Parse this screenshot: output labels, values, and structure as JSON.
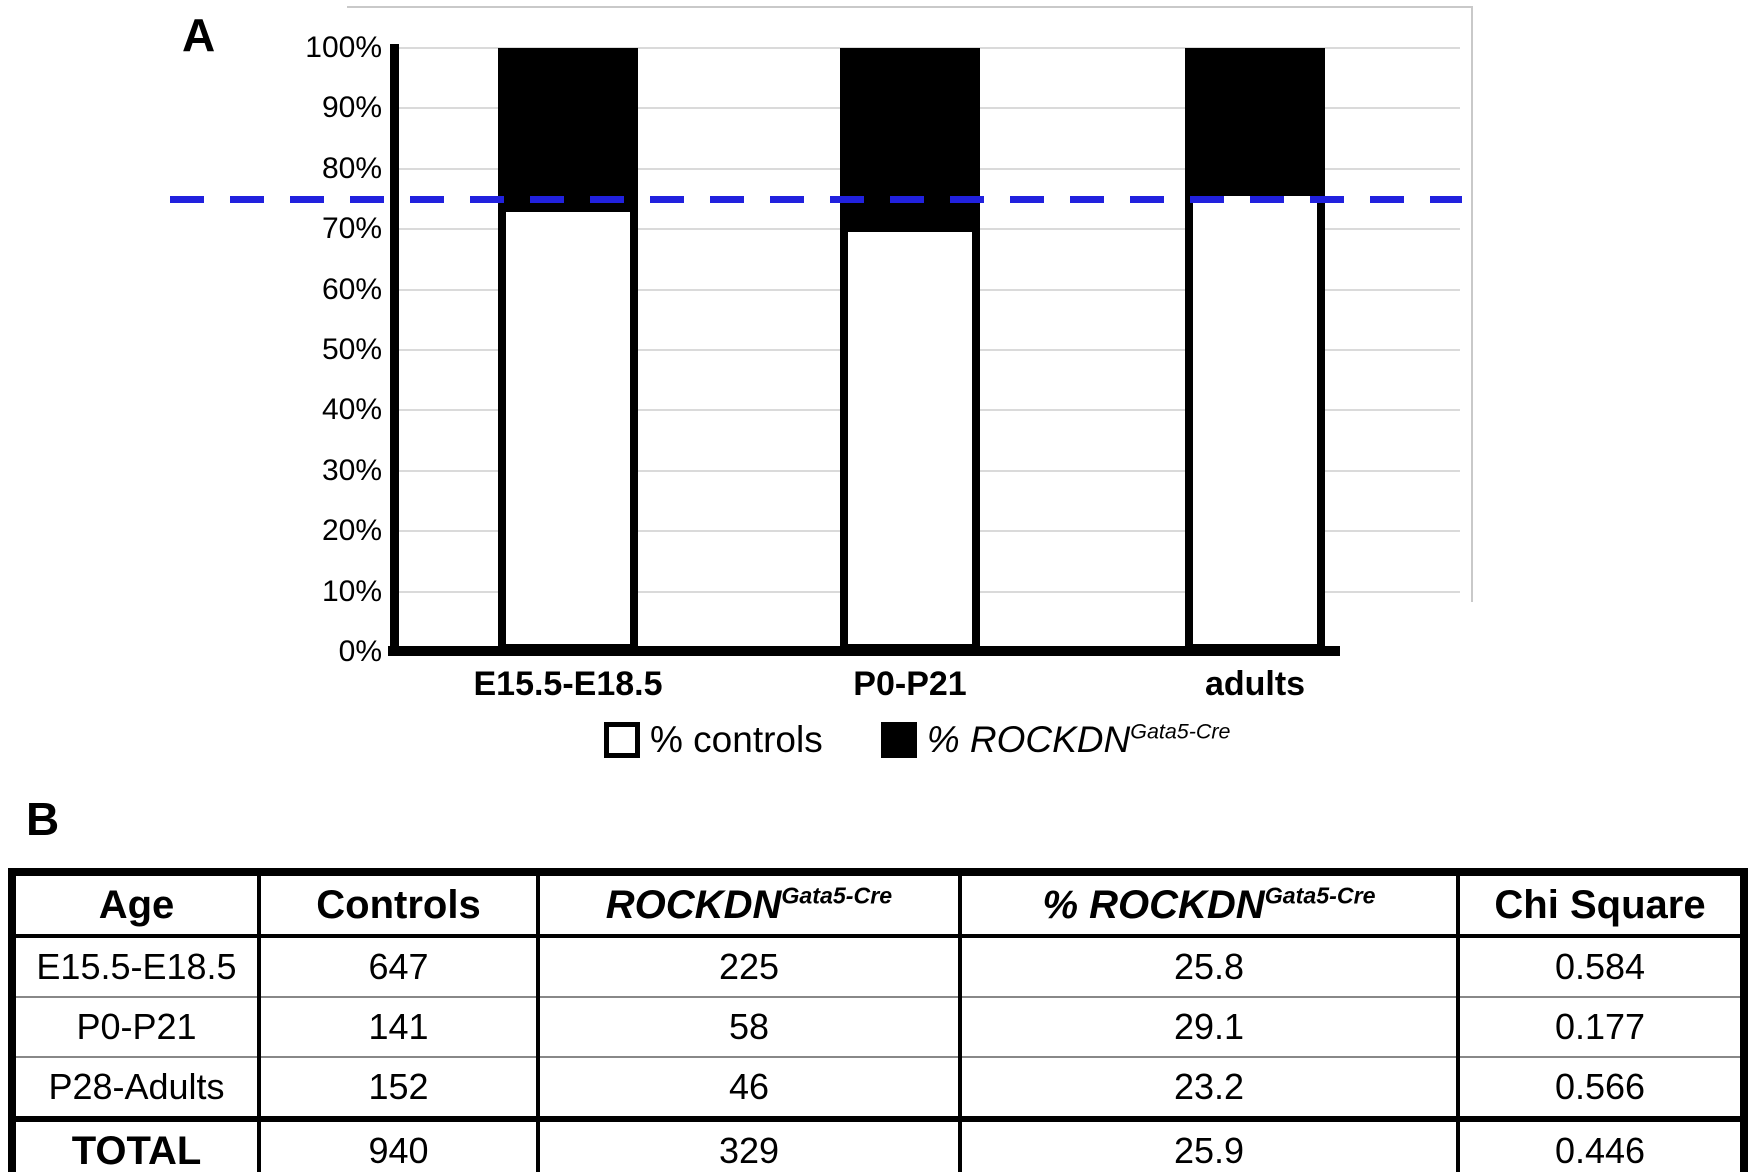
{
  "panel_a": {
    "label": "A",
    "legend": [
      {
        "swatch": "white",
        "label": "% controls",
        "sup": ""
      },
      {
        "swatch": "black",
        "label": "% ROCKDN",
        "sup": "Gata5-Cre"
      }
    ]
  },
  "chart_data": {
    "type": "bar",
    "subtype": "stacked-100",
    "categories": [
      "E15.5-E18.5",
      "P0-P21",
      "adults"
    ],
    "series": [
      {
        "name": "% controls",
        "color": "#ffffff",
        "values": [
          74.2,
          70.9,
          76.8
        ]
      },
      {
        "name": "% ROCKDN Gata5-Cre",
        "color": "#000000",
        "values": [
          25.8,
          29.1,
          23.2
        ]
      }
    ],
    "title": "",
    "xlabel": "",
    "ylabel": "",
    "ylim": [
      0,
      100
    ],
    "yticks": [
      "0%",
      "10%",
      "20%",
      "30%",
      "40%",
      "50%",
      "60%",
      "70%",
      "80%",
      "90%",
      "100%"
    ],
    "grid": true,
    "legend_position": "bottom",
    "reference_line": {
      "value": 75,
      "color": "#2121de",
      "style": "dashed"
    }
  },
  "panel_b": {
    "label": "B",
    "table": {
      "columns": [
        {
          "text": "Age",
          "sup": "",
          "italic": false
        },
        {
          "text": "Controls",
          "sup": "",
          "italic": false
        },
        {
          "text": "ROCKDN",
          "sup": "Gata5-Cre",
          "italic": true
        },
        {
          "text": "% ROCKDN",
          "sup": "Gata5-Cre",
          "italic": true
        },
        {
          "text": "Chi Square",
          "sup": "",
          "italic": false
        }
      ],
      "rows": [
        [
          "E15.5-E18.5",
          "647",
          "225",
          "25.8",
          "0.584"
        ],
        [
          "P0-P21",
          "141",
          "58",
          "29.1",
          "0.177"
        ],
        [
          "P28-Adults",
          "152",
          "46",
          "23.2",
          "0.566"
        ]
      ],
      "total_row": [
        "TOTAL",
        "940",
        "329",
        "25.9",
        "0.446"
      ]
    }
  }
}
